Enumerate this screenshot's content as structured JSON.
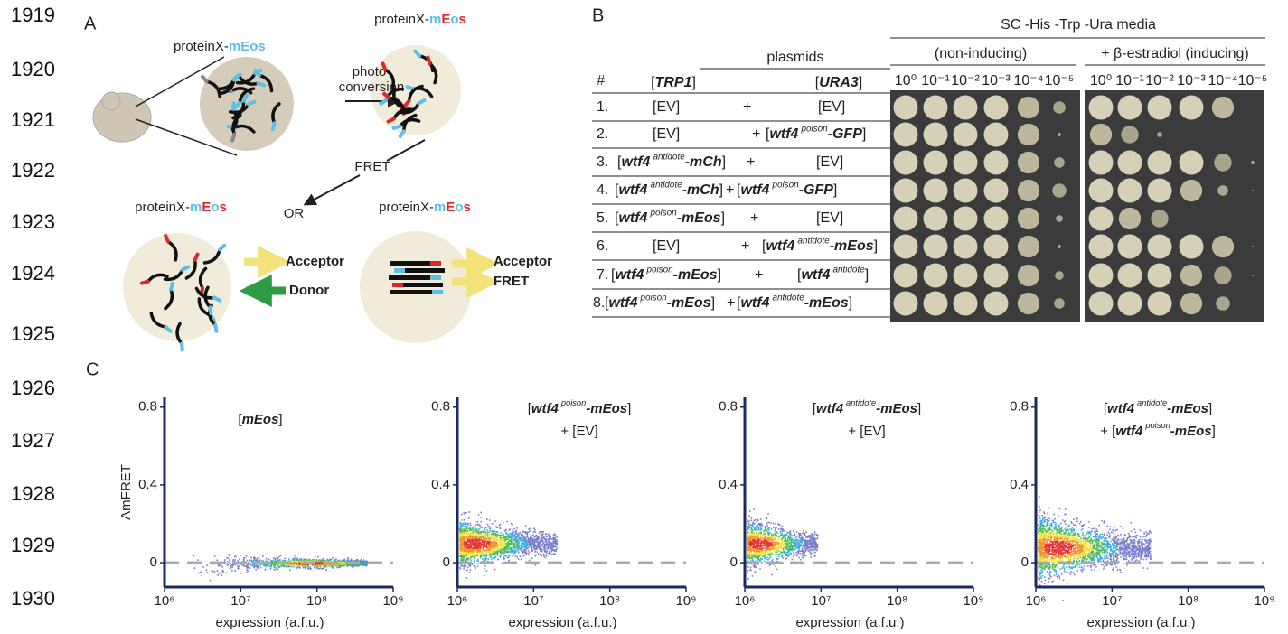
{
  "line_numbers": [
    "1919",
    "1920",
    "1921",
    "1922",
    "1923",
    "1924",
    "1925",
    "1926",
    "1927",
    "1928",
    "1929",
    "1930"
  ],
  "panel_a": {
    "label": "A",
    "protein_labels": [
      {
        "text": [
          "proteinX-",
          "mEos"
        ],
        "colors": [
          "#231f20",
          "#5bbfe8"
        ]
      },
      {
        "text": [
          "proteinX-",
          "m",
          "E",
          "o",
          "s"
        ],
        "colors": [
          "#231f20",
          "#5bbfe8",
          "#e0262b",
          "#5bbfe8",
          "#e0262b"
        ]
      },
      {
        "text": [
          "proteinX-",
          "m",
          "E",
          "o",
          "s"
        ],
        "colors": [
          "#231f20",
          "#5bbfe8",
          "#e0262b",
          "#5bbfe8",
          "#e0262b"
        ]
      },
      {
        "text": [
          "proteinX-",
          "m",
          "E",
          "o",
          "s"
        ],
        "colors": [
          "#231f20",
          "#5bbfe8",
          "#e0262b",
          "#5bbfe8",
          "#e0262b"
        ]
      }
    ],
    "photoconversion": [
      "photo-",
      "conversion"
    ],
    "fret": "FRET",
    "or": "OR",
    "left_arrows": [
      "Acceptor",
      "Donor"
    ],
    "right_arrows": [
      "Acceptor",
      "FRET"
    ]
  },
  "panel_b": {
    "label": "B",
    "media": "SC -His -Trp -Ura media",
    "conditions": [
      "(non-inducing)",
      "+ β-estradiol (inducing)"
    ],
    "plasmids": "plasmids",
    "hash": "#",
    "columns": [
      {
        "open": "[",
        "gene": "TRP1",
        "close": "]"
      },
      {
        "open": "[",
        "gene": "URA3",
        "close": "]"
      }
    ],
    "dilutions": [
      "10⁰",
      "10⁻¹",
      "10⁻²",
      "10⁻³",
      "10⁻⁴",
      "10⁻⁵"
    ],
    "rows": [
      {
        "num": "1.",
        "left": "[EV]",
        "plus": "+",
        "right": "[EV]"
      },
      {
        "num": "2.",
        "left": "[EV]",
        "plus": "+",
        "right": {
          "open": "[",
          "gene": "wtf4",
          "sup": "poison",
          "tag": "-GFP",
          "close": "]"
        }
      },
      {
        "num": "3.",
        "left": {
          "open": "[",
          "gene": "wtf4",
          "sup": "antidote",
          "tag": "-mCh",
          "close": "]"
        },
        "plus": "+",
        "right": "[EV]"
      },
      {
        "num": "4.",
        "left": {
          "open": "[",
          "gene": "wtf4",
          "sup": "antidote",
          "tag": "-mCh",
          "close": "]"
        },
        "plus": "+",
        "right": {
          "open": "[",
          "gene": "wtf4",
          "sup": "poison",
          "tag": "-GFP",
          "close": "]"
        }
      },
      {
        "num": "5.",
        "left": {
          "open": "[",
          "gene": "wtf4",
          "sup": "poison",
          "tag": "-mEos",
          "close": "]"
        },
        "plus": "+",
        "right": "[EV]"
      },
      {
        "num": "6.",
        "left": "[EV]",
        "plus": "+",
        "right": {
          "open": "[",
          "gene": "wtf4",
          "sup": "antidote",
          "tag": "-mEos",
          "close": "]"
        }
      },
      {
        "num": "7.",
        "left": {
          "open": "[",
          "gene": "wtf4",
          "sup": "poison",
          "tag": "-mEos",
          "close": "]"
        },
        "plus": "+",
        "right": {
          "open": "[",
          "gene": "wtf4",
          "sup": "antidote",
          "close": "]"
        }
      },
      {
        "num": "8.",
        "left": {
          "open": "[",
          "gene": "wtf4",
          "sup": "poison",
          "tag": "-mEos",
          "close": "]"
        },
        "plus": "+",
        "right": {
          "open": "[",
          "gene": "wtf4",
          "sup": "antidote",
          "tag": "-mEos",
          "close": "]"
        }
      }
    ]
  },
  "panel_c": {
    "label": "C",
    "plots": [
      {
        "type": "scatter",
        "title": [
          {
            "open": "[",
            "tag": "mEos",
            "close": "]"
          }
        ],
        "ylabel": "AmFRET",
        "xlabel": "expression (a.f.u.)",
        "log_x": true,
        "xlim": [
          1000000,
          1000000000
        ],
        "xticks": [
          {
            "value": 1000000,
            "label": "10⁶"
          },
          {
            "value": 10000000,
            "label": "10⁷"
          },
          {
            "value": 100000000,
            "label": "10⁸"
          },
          {
            "value": 1000000000,
            "label": "10⁹"
          }
        ],
        "ylim": [
          -0.125,
          0.85
        ],
        "yticks": [
          0,
          0.4,
          0.8
        ]
      },
      {
        "type": "scatter",
        "title": [
          {
            "open": "[",
            "gene": "wtf4",
            "sup": "poison",
            "tag": "-mEos",
            "close": "]"
          },
          "+ [EV]"
        ],
        "xlabel": "expression (a.f.u.)",
        "log_x": true,
        "xlim": [
          1000000,
          1000000000
        ],
        "xticks": [
          {
            "value": 1000000,
            "label": "10⁶"
          },
          {
            "value": 10000000,
            "label": "10⁷"
          },
          {
            "value": 100000000,
            "label": "10⁸"
          },
          {
            "value": 1000000000,
            "label": "10⁹"
          }
        ],
        "ylim": [
          -0.125,
          0.85
        ],
        "yticks": [
          0,
          0.4,
          0.8
        ]
      },
      {
        "type": "scatter",
        "title": [
          {
            "open": "[",
            "gene": "wtf4",
            "sup": "antidote",
            "tag": "-mEos",
            "close": "]"
          },
          "+ [EV]"
        ],
        "xlabel": "expression (a.f.u.)",
        "log_x": true,
        "xlim": [
          1000000,
          1000000000
        ],
        "xticks": [
          {
            "value": 1000000,
            "label": "10⁶"
          },
          {
            "value": 10000000,
            "label": "10⁷"
          },
          {
            "value": 100000000,
            "label": "10⁸"
          },
          {
            "value": 1000000000,
            "label": "10⁹"
          }
        ],
        "ylim": [
          -0.125,
          0.85
        ],
        "yticks": [
          0,
          0.4,
          0.8
        ]
      },
      {
        "type": "scatter",
        "title": [
          {
            "open": "[",
            "gene": "wtf4",
            "sup": "antidote",
            "tag": "-mEos",
            "close": "]"
          },
          {
            "open": "+ [",
            "gene": "wtf4",
            "sup": "poison",
            "tag": "-mEos",
            "close": "]"
          }
        ],
        "xlabel": "expression (a.f.u.)",
        "log_x": true,
        "xlim": [
          1000000,
          1000000000
        ],
        "xticks": [
          {
            "value": 1000000,
            "label": "10⁶"
          },
          {
            "value": 10000000,
            "label": "10⁷"
          },
          {
            "value": 100000000,
            "label": "10⁸"
          },
          {
            "value": 1000000000,
            "label": "10⁹"
          }
        ],
        "ylim": [
          -0.125,
          0.85
        ],
        "yticks": [
          0,
          0.4,
          0.8
        ]
      }
    ]
  }
}
